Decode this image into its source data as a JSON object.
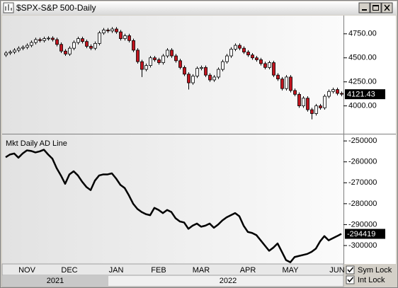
{
  "window": {
    "title": "$SPX-S&P 500-Daily"
  },
  "chart_data": [
    {
      "type": "candlestick",
      "categories": [
        null,
        null,
        null,
        null,
        null,
        "NOV",
        null,
        null,
        null,
        null,
        null,
        null,
        null,
        null,
        null,
        "DEC",
        null,
        null,
        null,
        null,
        null,
        null,
        null,
        null,
        null,
        null,
        "JAN",
        null,
        null,
        null,
        null,
        null,
        null,
        null,
        null,
        null,
        "FEB",
        null,
        null,
        null,
        null,
        null,
        null,
        null,
        null,
        null,
        "MAR",
        null,
        null,
        null,
        null,
        null,
        null,
        null,
        null,
        null,
        null,
        "APR",
        null,
        null,
        null,
        null,
        null,
        null,
        null,
        null,
        null,
        "MAY",
        null,
        null,
        null,
        null,
        null,
        null,
        null,
        null,
        null,
        null,
        "JUN",
        null
      ],
      "open": [
        4530,
        4550,
        4560,
        4580,
        4600,
        4610,
        4630,
        4660,
        4690,
        4680,
        4700,
        4705,
        4690,
        4640,
        4570,
        4540,
        4600,
        4660,
        4700,
        4670,
        4620,
        4600,
        4650,
        4760,
        4790,
        4780,
        4800,
        4770,
        4700,
        4730,
        4680,
        4580,
        4460,
        4380,
        4420,
        4500,
        4480,
        4450,
        4520,
        4580,
        4520,
        4470,
        4400,
        4330,
        4240,
        4310,
        4390,
        4400,
        4320,
        4270,
        4300,
        4380,
        4460,
        4520,
        4590,
        4630,
        4600,
        4560,
        4530,
        4500,
        4480,
        4440,
        4400,
        4450,
        4320,
        4280,
        4180,
        4300,
        4160,
        4120,
        4000,
        4080,
        3960,
        3920,
        4000,
        3980,
        4100,
        4150,
        4170,
        4130
      ],
      "high": [
        4570,
        4580,
        4600,
        4620,
        4630,
        4650,
        4680,
        4710,
        4710,
        4720,
        4725,
        4725,
        4710,
        4660,
        4590,
        4620,
        4680,
        4720,
        4720,
        4690,
        4640,
        4670,
        4780,
        4810,
        4810,
        4820,
        4820,
        4790,
        4750,
        4750,
        4700,
        4600,
        4480,
        4440,
        4520,
        4520,
        4500,
        4540,
        4600,
        4600,
        4540,
        4490,
        4420,
        4350,
        4330,
        4410,
        4420,
        4420,
        4340,
        4320,
        4400,
        4480,
        4540,
        4610,
        4650,
        4650,
        4620,
        4580,
        4550,
        4520,
        4500,
        4460,
        4470,
        4470,
        4340,
        4300,
        4320,
        4320,
        4180,
        4140,
        4100,
        4100,
        3980,
        4020,
        4020,
        4120,
        4170,
        4190,
        4190,
        4150
      ],
      "low": [
        4510,
        4530,
        4540,
        4560,
        4580,
        4590,
        4610,
        4640,
        4660,
        4660,
        4680,
        4670,
        4620,
        4550,
        4520,
        4520,
        4580,
        4640,
        4650,
        4600,
        4580,
        4580,
        4630,
        4740,
        4760,
        4760,
        4750,
        4680,
        4680,
        4660,
        4560,
        4440,
        4300,
        4360,
        4400,
        4460,
        4430,
        4430,
        4500,
        4500,
        4450,
        4380,
        4310,
        4170,
        4220,
        4290,
        4370,
        4300,
        4250,
        4250,
        4280,
        4360,
        4440,
        4500,
        4570,
        4580,
        4540,
        4510,
        4480,
        4460,
        4420,
        4380,
        4380,
        4300,
        4260,
        4160,
        4160,
        4140,
        4100,
        3980,
        3980,
        3940,
        3860,
        3900,
        3960,
        3960,
        4080,
        4130,
        4110,
        4100
      ],
      "close": [
        4550,
        4560,
        4580,
        4600,
        4610,
        4630,
        4660,
        4690,
        4680,
        4700,
        4705,
        4690,
        4640,
        4570,
        4540,
        4600,
        4660,
        4700,
        4670,
        4620,
        4600,
        4650,
        4760,
        4790,
        4780,
        4800,
        4770,
        4700,
        4730,
        4680,
        4580,
        4460,
        4380,
        4420,
        4500,
        4480,
        4450,
        4520,
        4580,
        4520,
        4470,
        4400,
        4330,
        4240,
        4310,
        4390,
        4400,
        4320,
        4270,
        4300,
        4380,
        4460,
        4520,
        4590,
        4630,
        4600,
        4560,
        4530,
        4500,
        4480,
        4440,
        4400,
        4450,
        4320,
        4280,
        4180,
        4300,
        4160,
        4120,
        4000,
        4080,
        3960,
        3920,
        4000,
        3980,
        4100,
        4150,
        4170,
        4130,
        4121.43
      ],
      "up_color": "#ffffff",
      "down_color": "#c0141e",
      "ylim": [
        3710,
        4940
      ],
      "yticks": [
        {
          "value": 4750,
          "label": "4750.00"
        },
        {
          "value": 4500,
          "label": "4500.00"
        },
        {
          "value": 4250,
          "label": "4250.00"
        },
        {
          "value": 4000,
          "label": "4000.00"
        }
      ],
      "last_value": 4121.43
    },
    {
      "type": "line",
      "title": "Mkt Daily AD Line",
      "color": "#000000",
      "values": [
        -257800,
        -256500,
        -256000,
        -258000,
        -256000,
        -254500,
        -254800,
        -255500,
        -255000,
        -254200,
        -256500,
        -258500,
        -263000,
        -266500,
        -270500,
        -266000,
        -264500,
        -266500,
        -269500,
        -272000,
        -273500,
        -269000,
        -266500,
        -266000,
        -266000,
        -265500,
        -268000,
        -271000,
        -272500,
        -276000,
        -280000,
        -282500,
        -284000,
        -285000,
        -285500,
        -282000,
        -283000,
        -284500,
        -283000,
        -284000,
        -287000,
        -288500,
        -289000,
        -292000,
        -290500,
        -289500,
        -291000,
        -290500,
        -289500,
        -291500,
        -290000,
        -288000,
        -286500,
        -285500,
        -284500,
        -286000,
        -290500,
        -293500,
        -294000,
        -295000,
        -297500,
        -300000,
        -302500,
        -301000,
        -299000,
        -303000,
        -307000,
        -308000,
        -305500,
        -305000,
        -304500,
        -304000,
        -303000,
        -301500,
        -298000,
        -295500,
        -297500,
        -296500,
        -295500,
        -294419
      ],
      "ylim": [
        -308800,
        -246900
      ],
      "yticks": [
        -250000,
        -260000,
        -270000,
        -280000,
        -290000,
        -300000
      ],
      "last_value": -294419
    }
  ],
  "footer": {
    "years": [
      "2021",
      "2022"
    ],
    "checkboxes": [
      {
        "label": "Sym Lock",
        "checked": true
      },
      {
        "label": "Int Lock",
        "checked": true
      }
    ]
  }
}
